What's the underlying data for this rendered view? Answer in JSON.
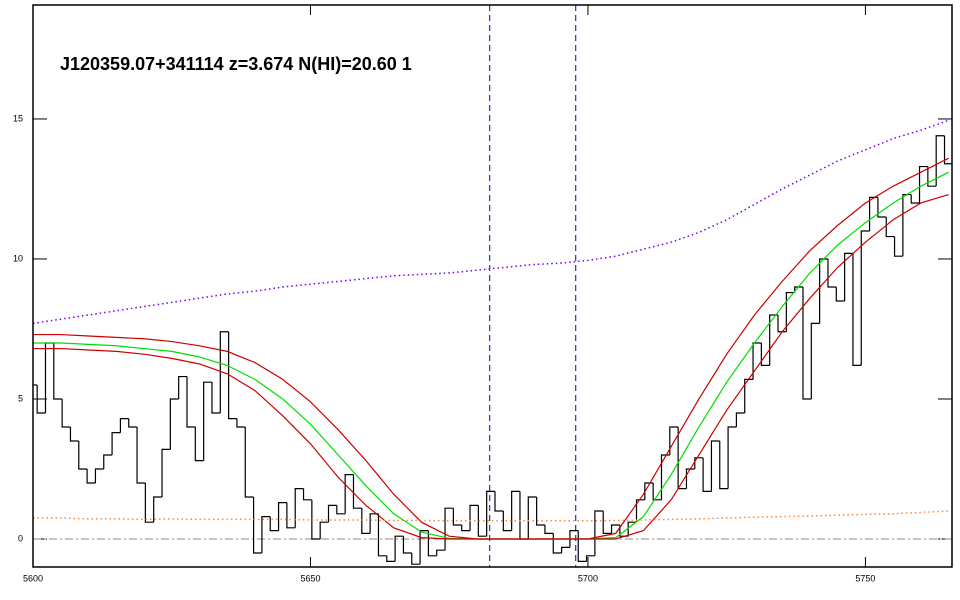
{
  "chart_data": {
    "type": "line",
    "title": "J120359.07+341114 z=3.674 N(HI)=20.60 1",
    "xlim": [
      5600,
      5765.6
    ],
    "ylim": [
      -1,
      19.07
    ],
    "xticks": [
      5600,
      5650,
      5700,
      5750
    ],
    "yticks": [
      0,
      5,
      10,
      15
    ],
    "vlines": [
      5682.3,
      5697.8
    ],
    "hlines": [
      0
    ],
    "x": [
      5600,
      5601.5,
      5603,
      5604.5,
      5606,
      5607.5,
      5609,
      5610.5,
      5612,
      5613.5,
      5615,
      5616.5,
      5618,
      5619.5,
      5621,
      5622.5,
      5624,
      5625.5,
      5627,
      5628.5,
      5630,
      5631.5,
      5633,
      5634.5,
      5636,
      5637.5,
      5639,
      5640.5,
      5642,
      5643.5,
      5645,
      5646.5,
      5648,
      5649.5,
      5651,
      5652.5,
      5654,
      5655.5,
      5657,
      5658.5,
      5660,
      5661.5,
      5663,
      5664.5,
      5666,
      5667.5,
      5669,
      5670.5,
      5672,
      5673.5,
      5675,
      5676.5,
      5678,
      5679.5,
      5681,
      5682.5,
      5684,
      5685.5,
      5687,
      5688.5,
      5690,
      5691.5,
      5693,
      5694.5,
      5696,
      5697.5,
      5699,
      5700.5,
      5702,
      5703.5,
      5705,
      5706.5,
      5708,
      5709.5,
      5711,
      5712.5,
      5714,
      5715.5,
      5717,
      5718.5,
      5720,
      5721.5,
      5723,
      5724.5,
      5726,
      5727.5,
      5729,
      5730.5,
      5732,
      5733.5,
      5735,
      5736.5,
      5738,
      5739.5,
      5741,
      5742.5,
      5744,
      5745.5,
      5747,
      5748.5,
      5750,
      5751.5,
      5753,
      5754.5,
      5756,
      5757.5,
      5759,
      5760.5,
      5762,
      5763.5,
      5765
    ],
    "series": [
      {
        "color": "#000000",
        "style": "step",
        "values": [
          5.5,
          4.5,
          7.0,
          5.0,
          4.0,
          3.5,
          2.5,
          2.0,
          2.5,
          3.0,
          3.8,
          4.3,
          4.0,
          2.0,
          0.6,
          1.5,
          3.2,
          5.0,
          5.8,
          4.0,
          2.8,
          5.6,
          4.5,
          7.4,
          4.3,
          4.0,
          1.5,
          -0.5,
          0.8,
          0.3,
          1.3,
          0.4,
          1.8,
          1.4,
          0.0,
          0.6,
          1.2,
          0.9,
          2.3,
          1.1,
          0.2,
          0.9,
          -0.6,
          -0.8,
          0.1,
          -0.5,
          -0.9,
          0.3,
          -0.6,
          -0.4,
          1.1,
          0.5,
          0.3,
          1.2,
          0.1,
          1.7,
          1.0,
          0.3,
          1.7,
          0.0,
          1.5,
          0.5,
          0.2,
          -0.5,
          -0.3,
          0.3,
          -0.8,
          -0.6,
          1.0,
          0.2,
          0.5,
          0.1,
          0.6,
          1.4,
          2.0,
          1.4,
          3.0,
          4.0,
          1.8,
          2.5,
          2.9,
          1.7,
          3.5,
          1.8,
          4.0,
          4.5,
          5.7,
          7.0,
          6.2,
          8.0,
          7.4,
          8.8,
          9.0,
          5.0,
          7.7,
          10.0,
          9.0,
          8.5,
          10.2,
          6.2,
          11.0,
          12.2,
          11.5,
          10.8,
          10.1,
          12.3,
          12.0,
          13.3,
          12.6,
          14.4,
          13.4
        ]
      },
      {
        "color": "#00dd00",
        "style": "solid",
        "x": [
          5600,
          5605,
          5610,
          5615,
          5620,
          5625,
          5630,
          5635,
          5640,
          5645,
          5650,
          5655,
          5660,
          5665,
          5670,
          5675,
          5680,
          5685,
          5690,
          5695,
          5700,
          5705,
          5710,
          5715,
          5720,
          5725,
          5730,
          5735,
          5740,
          5745,
          5750,
          5755,
          5760,
          5765
        ],
        "values": [
          7.0,
          7.0,
          6.95,
          6.9,
          6.8,
          6.7,
          6.5,
          6.2,
          5.7,
          5.0,
          4.1,
          3.0,
          1.9,
          0.9,
          0.25,
          0.02,
          0,
          0,
          0,
          0,
          0,
          0.05,
          0.8,
          2.3,
          4.0,
          5.6,
          7.0,
          8.3,
          9.5,
          10.5,
          11.3,
          12.0,
          12.6,
          13.1
        ]
      },
      {
        "color": "#cc0000",
        "style": "solid",
        "x": [
          5600,
          5605,
          5610,
          5615,
          5620,
          5625,
          5630,
          5635,
          5640,
          5645,
          5650,
          5655,
          5660,
          5665,
          5670,
          5675,
          5680,
          5685,
          5690,
          5695,
          5700,
          5705,
          5710,
          5715,
          5720,
          5725,
          5730,
          5735,
          5740,
          5745,
          5750,
          5755,
          5760,
          5765
        ],
        "values": [
          7.3,
          7.3,
          7.25,
          7.2,
          7.15,
          7.05,
          6.9,
          6.7,
          6.3,
          5.7,
          4.9,
          3.9,
          2.8,
          1.6,
          0.6,
          0.1,
          0,
          0,
          0,
          0,
          0,
          0.2,
          1.6,
          3.3,
          5.0,
          6.6,
          8.0,
          9.2,
          10.3,
          11.2,
          12.0,
          12.6,
          13.1,
          13.6
        ]
      },
      {
        "color": "#cc0000",
        "style": "solid",
        "x": [
          5600,
          5605,
          5610,
          5615,
          5620,
          5625,
          5630,
          5635,
          5640,
          5645,
          5650,
          5655,
          5660,
          5665,
          5670,
          5675,
          5680,
          5685,
          5690,
          5695,
          5700,
          5705,
          5710,
          5715,
          5720,
          5725,
          5730,
          5735,
          5740,
          5745,
          5750,
          5755,
          5760,
          5765
        ],
        "values": [
          6.8,
          6.8,
          6.75,
          6.7,
          6.6,
          6.45,
          6.25,
          5.9,
          5.3,
          4.4,
          3.4,
          2.2,
          1.2,
          0.4,
          0.05,
          0,
          0,
          0,
          0,
          0,
          0,
          0,
          0.3,
          1.4,
          3.0,
          4.6,
          6.0,
          7.4,
          8.6,
          9.7,
          10.6,
          11.4,
          12.0,
          12.3
        ]
      },
      {
        "color": "#7700ee",
        "style": "dotted",
        "x": [
          5600,
          5605,
          5610,
          5615,
          5620,
          5625,
          5630,
          5635,
          5640,
          5645,
          5650,
          5655,
          5660,
          5665,
          5670,
          5675,
          5680,
          5685,
          5690,
          5695,
          5700,
          5705,
          5710,
          5715,
          5720,
          5725,
          5730,
          5735,
          5740,
          5745,
          5750,
          5755,
          5760,
          5765
        ],
        "values": [
          7.7,
          7.85,
          8.0,
          8.15,
          8.3,
          8.45,
          8.6,
          8.75,
          8.85,
          9.0,
          9.1,
          9.2,
          9.3,
          9.4,
          9.45,
          9.5,
          9.6,
          9.7,
          9.8,
          9.85,
          9.95,
          10.1,
          10.35,
          10.6,
          10.95,
          11.4,
          11.95,
          12.5,
          13.0,
          13.5,
          13.9,
          14.3,
          14.6,
          14.95
        ]
      },
      {
        "color": "#ff8833",
        "style": "dotted",
        "x": [
          5600,
          5605,
          5610,
          5615,
          5620,
          5625,
          5630,
          5635,
          5640,
          5645,
          5650,
          5655,
          5660,
          5665,
          5670,
          5675,
          5680,
          5685,
          5690,
          5695,
          5700,
          5705,
          5710,
          5715,
          5720,
          5725,
          5730,
          5735,
          5740,
          5745,
          5750,
          5755,
          5760,
          5765
        ],
        "values": [
          0.75,
          0.75,
          0.72,
          0.72,
          0.7,
          0.72,
          0.7,
          0.7,
          0.7,
          0.7,
          0.68,
          0.68,
          0.68,
          0.66,
          0.66,
          0.65,
          0.65,
          0.65,
          0.65,
          0.65,
          0.65,
          0.66,
          0.68,
          0.7,
          0.72,
          0.75,
          0.78,
          0.8,
          0.82,
          0.85,
          0.88,
          0.9,
          0.95,
          1.0
        ]
      }
    ]
  }
}
